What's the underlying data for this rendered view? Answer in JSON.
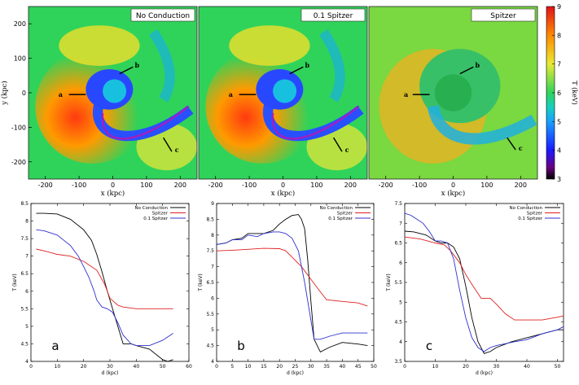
{
  "colorbar": {
    "label": "T (keV)",
    "ticks": [
      "3",
      "4",
      "5",
      "6",
      "7",
      "8",
      "9"
    ],
    "stops": [
      {
        "v": 3,
        "color": "#000000"
      },
      {
        "v": 3.4,
        "color": "#6a0080"
      },
      {
        "v": 4,
        "color": "#1a1aff"
      },
      {
        "v": 5,
        "color": "#1aa0ff"
      },
      {
        "v": 5.5,
        "color": "#16d0c0"
      },
      {
        "v": 6,
        "color": "#2fd45a"
      },
      {
        "v": 7,
        "color": "#e8ea33"
      },
      {
        "v": 8,
        "color": "#ff8a00"
      },
      {
        "v": 9,
        "color": "#e0121a"
      }
    ]
  },
  "maps": {
    "titles": [
      "No Conduction",
      "0.1 Spitzer",
      "Spitzer"
    ],
    "xlabel": "x (kpc)",
    "ylabel": "y (kpc)",
    "xticks": [
      "-200",
      "-100",
      "0",
      "100",
      "200"
    ],
    "yticks": [
      "200",
      "100",
      "0",
      "-100",
      "-200"
    ],
    "markers": [
      "a",
      "b",
      "c"
    ]
  },
  "chart_data": [
    {
      "type": "line",
      "panel_label": "a",
      "xlabel": "d (kpc)",
      "ylabel": "T (keV)",
      "xlim": [
        0,
        60
      ],
      "ylim": [
        4,
        8.5
      ],
      "xticks": [
        0,
        10,
        20,
        30,
        40,
        50,
        60
      ],
      "yticks": [
        4,
        4.5,
        5,
        5.5,
        6,
        6.5,
        7,
        7.5,
        8,
        8.5
      ],
      "legend_position": "top-right",
      "series": [
        {
          "name": "No Conduction",
          "color": "#000000",
          "x": [
            2,
            5,
            10,
            15,
            20,
            23,
            25,
            27,
            29,
            31,
            33,
            35,
            38,
            40,
            45,
            50,
            52,
            54
          ],
          "y": [
            8.22,
            8.22,
            8.2,
            8.05,
            7.75,
            7.45,
            7.05,
            6.55,
            6.0,
            5.5,
            5.0,
            4.5,
            4.5,
            4.45,
            4.35,
            4.05,
            4.0,
            4.05
          ]
        },
        {
          "name": "Spitzer",
          "color": "#e02020",
          "x": [
            2,
            5,
            10,
            15,
            20,
            25,
            28,
            30,
            33,
            35,
            40,
            45,
            50,
            54
          ],
          "y": [
            7.2,
            7.15,
            7.05,
            7.0,
            6.85,
            6.6,
            6.2,
            5.8,
            5.6,
            5.55,
            5.5,
            5.5,
            5.5,
            5.5
          ]
        },
        {
          "name": "0.1 Spitzer",
          "color": "#3030d0",
          "x": [
            2,
            5,
            10,
            15,
            18,
            20,
            22,
            24,
            25,
            27,
            29,
            31,
            33,
            35,
            38,
            40,
            45,
            50,
            54
          ],
          "y": [
            7.75,
            7.72,
            7.6,
            7.3,
            7.0,
            6.7,
            6.4,
            6.0,
            5.75,
            5.55,
            5.5,
            5.4,
            5.1,
            4.75,
            4.5,
            4.45,
            4.45,
            4.6,
            4.8
          ]
        }
      ]
    },
    {
      "type": "line",
      "panel_label": "b",
      "xlabel": "d (kpc)",
      "ylabel": "T (keV)",
      "xlim": [
        0,
        50
      ],
      "ylim": [
        4,
        9
      ],
      "xticks": [
        0,
        5,
        10,
        15,
        20,
        25,
        30,
        35,
        40,
        45,
        50
      ],
      "yticks": [
        4,
        4.5,
        5,
        5.5,
        6,
        6.5,
        7,
        7.5,
        8,
        8.5,
        9
      ],
      "legend_position": "top-right",
      "series": [
        {
          "name": "No Conduction",
          "color": "#000000",
          "x": [
            0,
            3,
            5,
            8,
            10,
            13,
            15,
            18,
            20,
            22,
            24,
            26,
            27,
            28,
            29,
            30,
            31,
            33,
            36,
            40,
            45,
            48
          ],
          "y": [
            7.7,
            7.75,
            7.85,
            7.9,
            8.05,
            8.05,
            8.05,
            8.15,
            8.35,
            8.5,
            8.62,
            8.65,
            8.5,
            8.2,
            7.2,
            5.9,
            4.7,
            4.3,
            4.45,
            4.6,
            4.55,
            4.5
          ]
        },
        {
          "name": "Spitzer",
          "color": "#e02020",
          "x": [
            0,
            5,
            10,
            15,
            20,
            22,
            25,
            27,
            30,
            33,
            35,
            40,
            45,
            48
          ],
          "y": [
            7.5,
            7.52,
            7.55,
            7.58,
            7.57,
            7.5,
            7.2,
            7.0,
            6.6,
            6.2,
            5.95,
            5.9,
            5.85,
            5.75
          ]
        },
        {
          "name": "0.1 Spitzer",
          "color": "#3030d0",
          "x": [
            0,
            3,
            5,
            8,
            10,
            13,
            15,
            18,
            20,
            22,
            24,
            26,
            28,
            30,
            31,
            33,
            36,
            40,
            45,
            48
          ],
          "y": [
            7.7,
            7.75,
            7.85,
            7.85,
            8.0,
            7.95,
            8.05,
            8.1,
            8.1,
            8.05,
            7.9,
            7.5,
            6.5,
            5.3,
            4.7,
            4.7,
            4.8,
            4.9,
            4.9,
            4.9
          ]
        }
      ]
    },
    {
      "type": "line",
      "panel_label": "c",
      "xlabel": "d (kpc)",
      "ylabel": "T (keV)",
      "xlim": [
        0,
        52
      ],
      "ylim": [
        3.5,
        7.5
      ],
      "xticks": [
        0,
        10,
        20,
        30,
        40,
        50
      ],
      "yticks": [
        3.5,
        4,
        4.5,
        5,
        5.5,
        6,
        6.5,
        7,
        7.5
      ],
      "legend_position": "top-right",
      "series": [
        {
          "name": "No Conduction",
          "color": "#000000",
          "x": [
            0,
            3,
            7,
            10,
            12,
            14,
            16,
            18,
            20,
            22,
            24,
            26,
            28,
            30,
            35,
            40,
            45,
            50,
            52
          ],
          "y": [
            6.8,
            6.78,
            6.7,
            6.55,
            6.5,
            6.5,
            6.4,
            6.1,
            5.4,
            4.6,
            4.0,
            3.7,
            3.75,
            3.85,
            4.0,
            4.1,
            4.2,
            4.3,
            4.3
          ]
        },
        {
          "name": "Spitzer",
          "color": "#e02020",
          "x": [
            0,
            5,
            10,
            13,
            15,
            18,
            20,
            22,
            25,
            28,
            30,
            33,
            36,
            40,
            45,
            50,
            52
          ],
          "y": [
            6.65,
            6.6,
            6.5,
            6.45,
            6.3,
            6.0,
            5.7,
            5.45,
            5.1,
            5.1,
            4.95,
            4.7,
            4.55,
            4.55,
            4.55,
            4.62,
            4.65
          ]
        },
        {
          "name": "0.1 Spitzer",
          "color": "#3030d0",
          "x": [
            0,
            2,
            4,
            6,
            8,
            10,
            12,
            14,
            16,
            18,
            20,
            22,
            24,
            26,
            28,
            30,
            33,
            36,
            40,
            45,
            50,
            52
          ],
          "y": [
            7.25,
            7.2,
            7.1,
            7.0,
            6.8,
            6.55,
            6.55,
            6.5,
            6.1,
            5.3,
            4.6,
            4.1,
            3.85,
            3.75,
            3.85,
            3.9,
            3.95,
            4.0,
            4.05,
            4.2,
            4.3,
            4.38
          ]
        }
      ]
    }
  ]
}
